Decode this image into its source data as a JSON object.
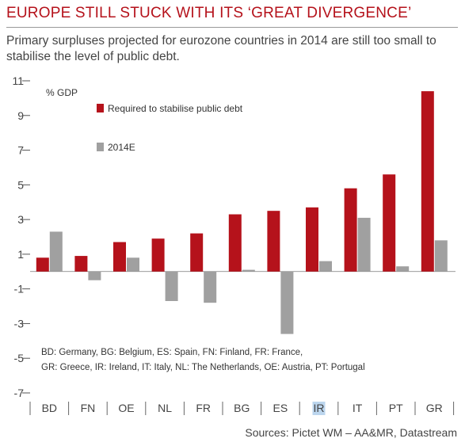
{
  "title": "EUROPE STILL STUCK WITH ITS ‘GREAT DIVERGENCE’",
  "subtitle": "Primary surpluses projected for eurozone countries in 2014 are still too small to stabilise the level of public debt.",
  "source": "Sources: Pictet WM – AA&MR, Datastream",
  "note_lines": [
    "BD: Germany, BG: Belgium, ES: Spain, FN: Finland, FR: France,",
    "GR: Greece, IR: Ireland, IT: Italy, NL: The Netherlands, OE: Austria, PT: Portugal"
  ],
  "colors": {
    "red": "#b5121b",
    "grey": "#a0a0a0",
    "title": "#b5121b"
  },
  "chart_data": {
    "type": "bar",
    "ylabel": "% GDP",
    "ylim": [
      -7,
      11
    ],
    "yticks": [
      11,
      9,
      7,
      5,
      3,
      1,
      -1,
      -3,
      -5,
      -7
    ],
    "categories": [
      "BD",
      "FN",
      "OE",
      "NL",
      "FR",
      "BG",
      "ES",
      "IR",
      "IT",
      "PT",
      "GR"
    ],
    "highlight_category": "IR",
    "series": [
      {
        "name": "Required to stabilise public debt",
        "color": "#b5121b",
        "values": [
          0.8,
          0.9,
          1.7,
          1.9,
          2.2,
          3.3,
          3.5,
          3.7,
          4.8,
          5.6,
          10.4
        ]
      },
      {
        "name": "2014E",
        "color": "#a0a0a0",
        "values": [
          2.3,
          -0.5,
          0.8,
          -1.7,
          -1.8,
          0.1,
          -3.6,
          0.6,
          3.1,
          0.3,
          1.8
        ]
      }
    ],
    "legend_position": "top-left",
    "grid": false
  }
}
